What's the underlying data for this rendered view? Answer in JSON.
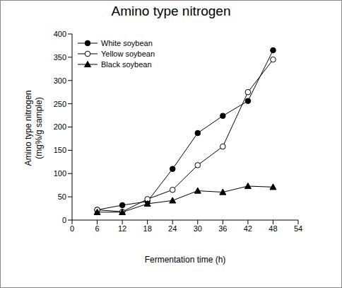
{
  "chart_data": {
    "type": "line",
    "title": "Amino type nitrogen",
    "x_label": "Fermentation time (h)",
    "y_label": [
      "Amino type nitrogen",
      "(mg%/g sample)"
    ],
    "x": [
      6,
      12,
      18,
      24,
      30,
      36,
      42,
      48
    ],
    "series": [
      {
        "name": "White soybean",
        "color": "#000000",
        "marker": "circle",
        "values": [
          22,
          32,
          40,
          110,
          187,
          224,
          256,
          365
        ]
      },
      {
        "name": "Yellow soybean",
        "color": "#000000",
        "marker": "open_circle",
        "values": [
          22,
          18,
          45,
          65,
          118,
          158,
          275,
          345
        ]
      },
      {
        "name": "Black soybean",
        "color": "#000000",
        "marker": "triangle",
        "values": [
          17,
          17,
          35,
          42,
          63,
          60,
          73,
          71
        ]
      }
    ],
    "xlim": [
      0,
      54
    ],
    "xticks": [
      0,
      6,
      12,
      18,
      24,
      30,
      36,
      42,
      48,
      54
    ],
    "ylim": [
      0,
      400
    ],
    "yticks": [
      0,
      50,
      100,
      150,
      200,
      250,
      300,
      350,
      400
    ],
    "grid": false,
    "legend": "upper left"
  }
}
